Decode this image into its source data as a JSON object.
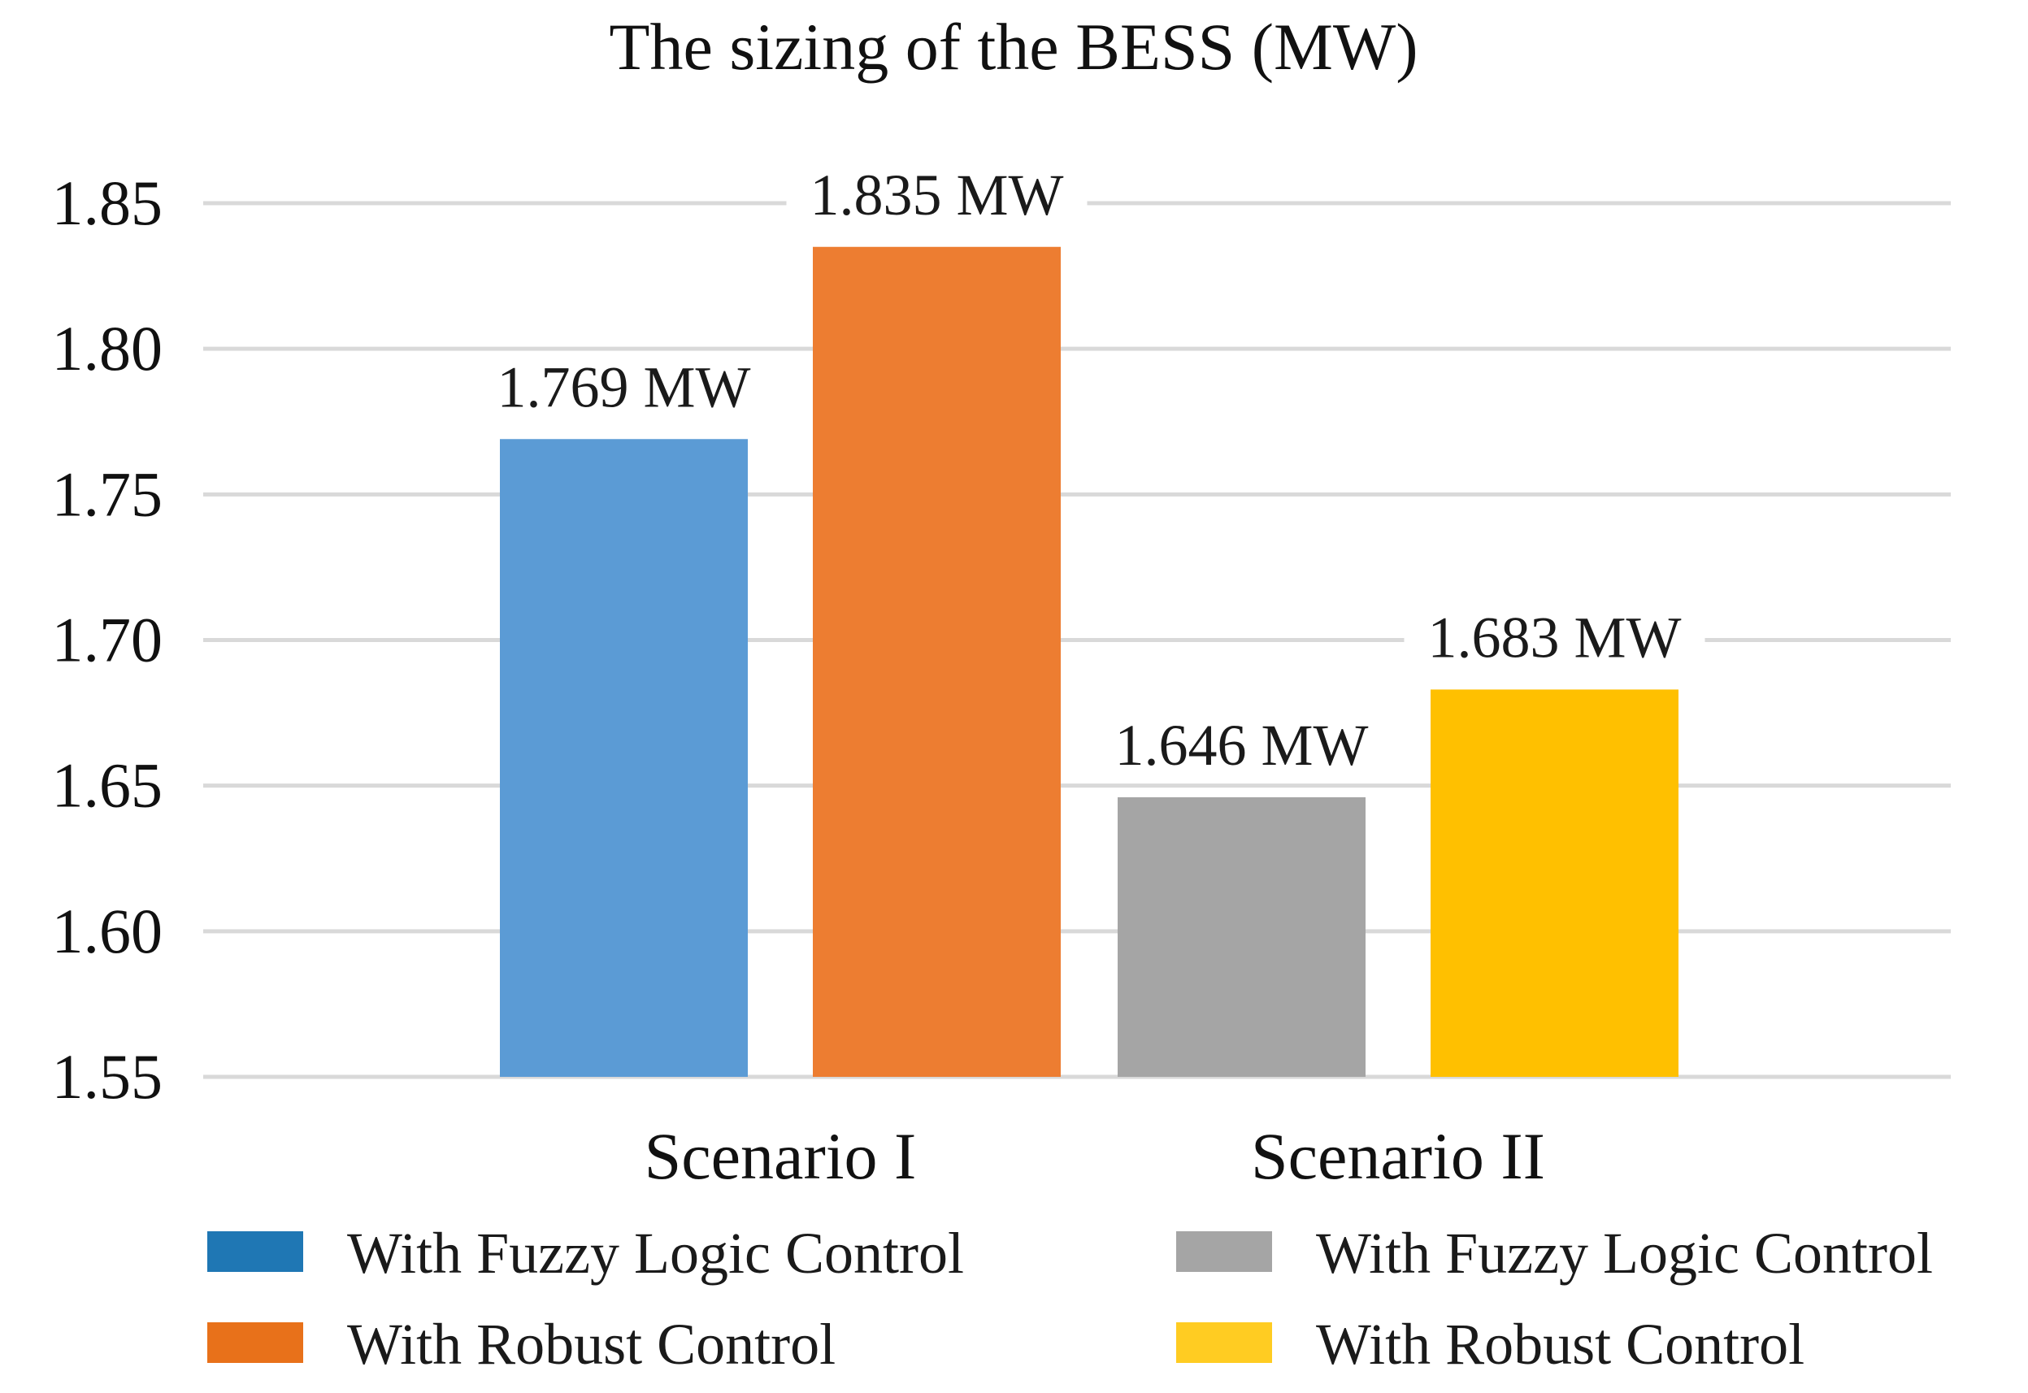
{
  "chart_data": {
    "type": "bar",
    "title": "The sizing of the BESS (MW)",
    "xlabel": "",
    "ylabel": "",
    "ylim": [
      1.55,
      1.85
    ],
    "yticks": [
      "1.55",
      "1.60",
      "1.65",
      "1.70",
      "1.75",
      "1.80",
      "1.85"
    ],
    "grid": true,
    "legend_position": "bottom",
    "groups": [
      {
        "category": "Scenario I",
        "bars": [
          {
            "name": "With Fuzzy Logic Control",
            "value": 1.769,
            "label": "1.769 MW",
            "color": "#5B9BD5"
          },
          {
            "name": "With Robust Control",
            "value": 1.835,
            "label": "1.835 MW",
            "color": "#ED7D31"
          }
        ]
      },
      {
        "category": "Scenario II",
        "bars": [
          {
            "name": "With Fuzzy Logic Control",
            "value": 1.646,
            "label": "1.646 MW",
            "color": "#A5A5A5"
          },
          {
            "name": "With Robust Control",
            "value": 1.683,
            "label": "1.683 MW",
            "color": "#FFC000"
          }
        ]
      }
    ],
    "legend": [
      {
        "label": "With Fuzzy Logic Control",
        "color": "#1F77B4"
      },
      {
        "label": "With Robust Control",
        "color": "#E8711A"
      },
      {
        "label": "With Fuzzy Logic Control",
        "color": "#A5A5A5"
      },
      {
        "label": "With Robust Control",
        "color": "#FFCC22"
      }
    ]
  }
}
